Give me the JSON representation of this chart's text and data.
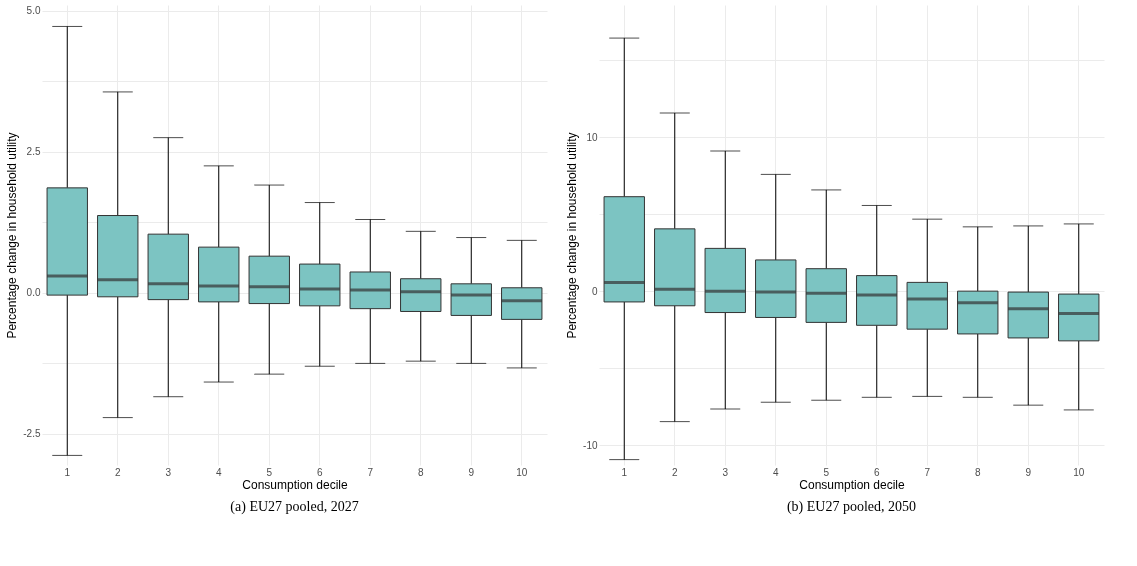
{
  "chart_data": [
    {
      "type": "box",
      "title": "(a) EU27 pooled, 2027",
      "xlabel": "Consumption decile",
      "ylabel": "Percentage change in household utility",
      "color": "#7cc4c2",
      "grid": true,
      "categories": [
        "1",
        "2",
        "3",
        "4",
        "5",
        "6",
        "7",
        "8",
        "9",
        "10"
      ],
      "ylim": [
        -3.05,
        5.1
      ],
      "yticks": [
        {
          "value": -2.5,
          "label": "-2.5"
        },
        {
          "value": -1.25,
          "label": null
        },
        {
          "value": 0,
          "label": "0.0"
        },
        {
          "value": 1.25,
          "label": null
        },
        {
          "value": 2.5,
          "label": "2.5"
        },
        {
          "value": 3.75,
          "label": null
        },
        {
          "value": 5,
          "label": "5.0"
        }
      ],
      "boxes": [
        {
          "low": -2.88,
          "q1": -0.04,
          "median": 0.3,
          "q3": 1.86,
          "high": 4.72
        },
        {
          "low": -2.21,
          "q1": -0.07,
          "median": 0.23,
          "q3": 1.37,
          "high": 3.56
        },
        {
          "low": -1.84,
          "q1": -0.12,
          "median": 0.16,
          "q3": 1.04,
          "high": 2.75
        },
        {
          "low": -1.58,
          "q1": -0.16,
          "median": 0.12,
          "q3": 0.81,
          "high": 2.25
        },
        {
          "low": -1.44,
          "q1": -0.19,
          "median": 0.11,
          "q3": 0.65,
          "high": 1.91
        },
        {
          "low": -1.3,
          "q1": -0.23,
          "median": 0.07,
          "q3": 0.51,
          "high": 1.6
        },
        {
          "low": -1.25,
          "q1": -0.28,
          "median": 0.05,
          "q3": 0.37,
          "high": 1.3
        },
        {
          "low": -1.21,
          "q1": -0.33,
          "median": 0.02,
          "q3": 0.25,
          "high": 1.09
        },
        {
          "low": -1.25,
          "q1": -0.4,
          "median": -0.04,
          "q3": 0.16,
          "high": 0.98
        },
        {
          "low": -1.33,
          "q1": -0.47,
          "median": -0.14,
          "q3": 0.09,
          "high": 0.93
        }
      ]
    },
    {
      "type": "box",
      "title": "(b) EU27 pooled, 2050",
      "xlabel": "Consumption decile",
      "ylabel": "Percentage change in household utility",
      "color": "#7cc4c2",
      "grid": true,
      "categories": [
        "1",
        "2",
        "3",
        "4",
        "5",
        "6",
        "7",
        "8",
        "9",
        "10"
      ],
      "ylim": [
        -11.3,
        18.6
      ],
      "yticks": [
        {
          "value": -10,
          "label": "-10"
        },
        {
          "value": -5,
          "label": null
        },
        {
          "value": 0,
          "label": "0"
        },
        {
          "value": 5,
          "label": null
        },
        {
          "value": 10,
          "label": "10"
        },
        {
          "value": 15,
          "label": null
        }
      ],
      "boxes": [
        {
          "low": -10.95,
          "q1": -0.7,
          "median": 0.57,
          "q3": 6.14,
          "high": 16.45
        },
        {
          "low": -8.48,
          "q1": -0.95,
          "median": 0.13,
          "q3": 4.05,
          "high": 11.58
        },
        {
          "low": -7.66,
          "q1": -1.39,
          "median": 0,
          "q3": 2.78,
          "high": 9.11
        },
        {
          "low": -7.22,
          "q1": -1.71,
          "median": -0.06,
          "q3": 2.03,
          "high": 7.59
        },
        {
          "low": -7.09,
          "q1": -2.03,
          "median": -0.13,
          "q3": 1.46,
          "high": 6.58
        },
        {
          "low": -6.9,
          "q1": -2.22,
          "median": -0.25,
          "q3": 1.01,
          "high": 5.57
        },
        {
          "low": -6.84,
          "q1": -2.47,
          "median": -0.51,
          "q3": 0.57,
          "high": 4.68
        },
        {
          "low": -6.9,
          "q1": -2.78,
          "median": -0.76,
          "q3": 0,
          "high": 4.18
        },
        {
          "low": -7.41,
          "q1": -3.04,
          "median": -1.14,
          "q3": -0.06,
          "high": 4.24
        },
        {
          "low": -7.72,
          "q1": -3.23,
          "median": -1.46,
          "q3": -0.19,
          "high": 4.37
        }
      ]
    }
  ]
}
